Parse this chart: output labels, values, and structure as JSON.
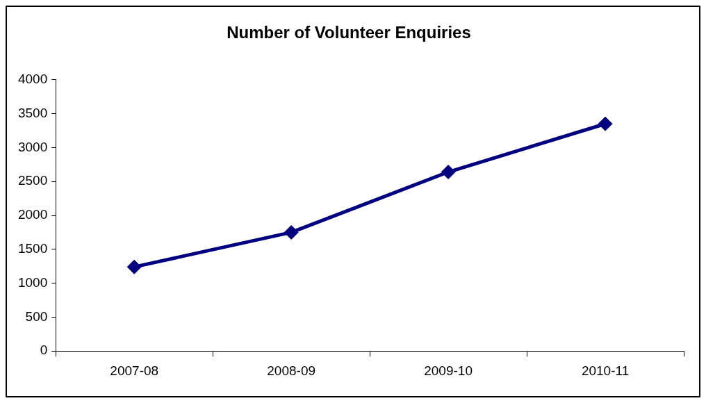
{
  "chart_data": {
    "type": "line",
    "title": "Number of Volunteer Enquiries",
    "categories": [
      "2007-08",
      "2008-09",
      "2009-10",
      "2010-11"
    ],
    "series": [
      {
        "color": "#000080",
        "values": [
          1240,
          1750,
          2640,
          3350
        ]
      }
    ],
    "ylim": [
      0,
      4000
    ],
    "yticks": [
      0,
      500,
      1000,
      1500,
      2000,
      2500,
      3000,
      3500,
      4000
    ],
    "grid": false,
    "legend": false,
    "marker": "diamond",
    "line_style": "solid"
  }
}
